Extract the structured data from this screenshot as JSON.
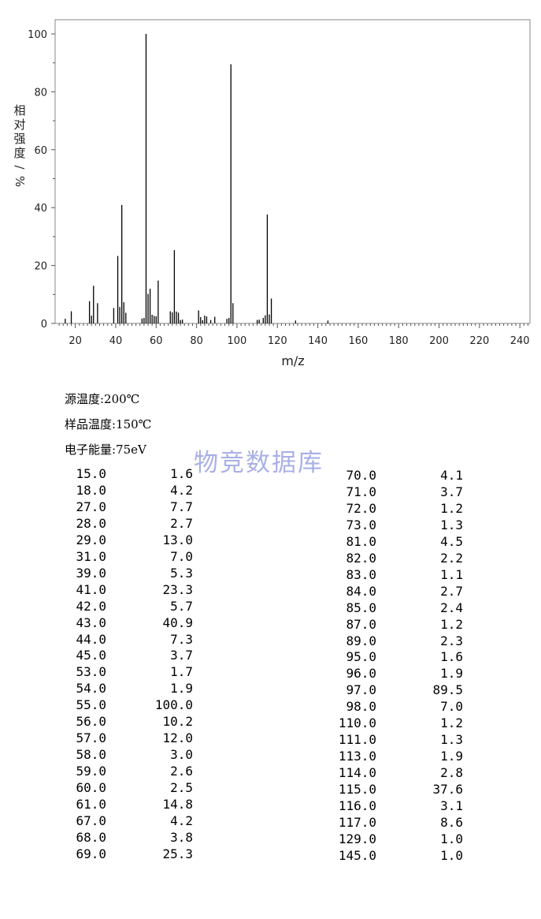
{
  "chart_data": {
    "type": "bar",
    "xlabel": "m/z",
    "ylabel": "相对强度/%",
    "xlim": [
      10,
      245
    ],
    "ylim": [
      0,
      100
    ],
    "x_ticks": [
      "20",
      "40",
      "60",
      "80",
      "100",
      "120",
      "140",
      "160",
      "180",
      "200",
      "220",
      "240"
    ],
    "y_ticks": [
      "0",
      "20",
      "40",
      "60",
      "80",
      "100"
    ],
    "grid": false,
    "peaks": [
      {
        "mz": 15.0,
        "intensity": 1.6
      },
      {
        "mz": 18.0,
        "intensity": 4.2
      },
      {
        "mz": 27.0,
        "intensity": 7.7
      },
      {
        "mz": 28.0,
        "intensity": 2.7
      },
      {
        "mz": 29.0,
        "intensity": 13.0
      },
      {
        "mz": 31.0,
        "intensity": 7.0
      },
      {
        "mz": 39.0,
        "intensity": 5.3
      },
      {
        "mz": 41.0,
        "intensity": 23.3
      },
      {
        "mz": 42.0,
        "intensity": 5.7
      },
      {
        "mz": 43.0,
        "intensity": 40.9
      },
      {
        "mz": 44.0,
        "intensity": 7.3
      },
      {
        "mz": 45.0,
        "intensity": 3.7
      },
      {
        "mz": 53.0,
        "intensity": 1.7
      },
      {
        "mz": 54.0,
        "intensity": 1.9
      },
      {
        "mz": 55.0,
        "intensity": 100.0
      },
      {
        "mz": 56.0,
        "intensity": 10.2
      },
      {
        "mz": 57.0,
        "intensity": 12.0
      },
      {
        "mz": 58.0,
        "intensity": 3.0
      },
      {
        "mz": 59.0,
        "intensity": 2.6
      },
      {
        "mz": 60.0,
        "intensity": 2.5
      },
      {
        "mz": 61.0,
        "intensity": 14.8
      },
      {
        "mz": 67.0,
        "intensity": 4.2
      },
      {
        "mz": 68.0,
        "intensity": 3.8
      },
      {
        "mz": 69.0,
        "intensity": 25.3
      },
      {
        "mz": 70.0,
        "intensity": 4.1
      },
      {
        "mz": 71.0,
        "intensity": 3.7
      },
      {
        "mz": 72.0,
        "intensity": 1.2
      },
      {
        "mz": 73.0,
        "intensity": 1.3
      },
      {
        "mz": 81.0,
        "intensity": 4.5
      },
      {
        "mz": 82.0,
        "intensity": 2.2
      },
      {
        "mz": 83.0,
        "intensity": 1.1
      },
      {
        "mz": 84.0,
        "intensity": 2.7
      },
      {
        "mz": 85.0,
        "intensity": 2.4
      },
      {
        "mz": 87.0,
        "intensity": 1.2
      },
      {
        "mz": 89.0,
        "intensity": 2.3
      },
      {
        "mz": 95.0,
        "intensity": 1.6
      },
      {
        "mz": 96.0,
        "intensity": 1.9
      },
      {
        "mz": 97.0,
        "intensity": 89.5
      },
      {
        "mz": 98.0,
        "intensity": 7.0
      },
      {
        "mz": 110.0,
        "intensity": 1.2
      },
      {
        "mz": 111.0,
        "intensity": 1.3
      },
      {
        "mz": 113.0,
        "intensity": 1.9
      },
      {
        "mz": 114.0,
        "intensity": 2.8
      },
      {
        "mz": 115.0,
        "intensity": 37.6
      },
      {
        "mz": 116.0,
        "intensity": 3.1
      },
      {
        "mz": 117.0,
        "intensity": 8.6
      },
      {
        "mz": 129.0,
        "intensity": 1.0
      },
      {
        "mz": 145.0,
        "intensity": 1.0
      }
    ]
  },
  "conditions": {
    "source_temp": "源温度:200℃",
    "sample_temp": "样品温度:150℃",
    "electron_energy": "电子能量:75eV"
  },
  "watermark": "物竞数据库",
  "table": {
    "left": [
      [
        "15.0",
        "1.6"
      ],
      [
        "18.0",
        "4.2"
      ],
      [
        "27.0",
        "7.7"
      ],
      [
        "28.0",
        "2.7"
      ],
      [
        "29.0",
        "13.0"
      ],
      [
        "31.0",
        "7.0"
      ],
      [
        "39.0",
        "5.3"
      ],
      [
        "41.0",
        "23.3"
      ],
      [
        "42.0",
        "5.7"
      ],
      [
        "43.0",
        "40.9"
      ],
      [
        "44.0",
        "7.3"
      ],
      [
        "45.0",
        "3.7"
      ],
      [
        "53.0",
        "1.7"
      ],
      [
        "54.0",
        "1.9"
      ],
      [
        "55.0",
        "100.0"
      ],
      [
        "56.0",
        "10.2"
      ],
      [
        "57.0",
        "12.0"
      ],
      [
        "58.0",
        "3.0"
      ],
      [
        "59.0",
        "2.6"
      ],
      [
        "60.0",
        "2.5"
      ],
      [
        "61.0",
        "14.8"
      ],
      [
        "67.0",
        "4.2"
      ],
      [
        "68.0",
        "3.8"
      ],
      [
        "69.0",
        "25.3"
      ]
    ],
    "right": [
      [
        "70.0",
        "4.1"
      ],
      [
        "71.0",
        "3.7"
      ],
      [
        "72.0",
        "1.2"
      ],
      [
        "73.0",
        "1.3"
      ],
      [
        "81.0",
        "4.5"
      ],
      [
        "82.0",
        "2.2"
      ],
      [
        "83.0",
        "1.1"
      ],
      [
        "84.0",
        "2.7"
      ],
      [
        "85.0",
        "2.4"
      ],
      [
        "87.0",
        "1.2"
      ],
      [
        "89.0",
        "2.3"
      ],
      [
        "95.0",
        "1.6"
      ],
      [
        "96.0",
        "1.9"
      ],
      [
        "97.0",
        "89.5"
      ],
      [
        "98.0",
        "7.0"
      ],
      [
        "110.0",
        "1.2"
      ],
      [
        "111.0",
        "1.3"
      ],
      [
        "113.0",
        "1.9"
      ],
      [
        "114.0",
        "2.8"
      ],
      [
        "115.0",
        "37.6"
      ],
      [
        "116.0",
        "3.1"
      ],
      [
        "117.0",
        "8.6"
      ],
      [
        "129.0",
        "1.0"
      ],
      [
        "145.0",
        "1.0"
      ]
    ]
  }
}
